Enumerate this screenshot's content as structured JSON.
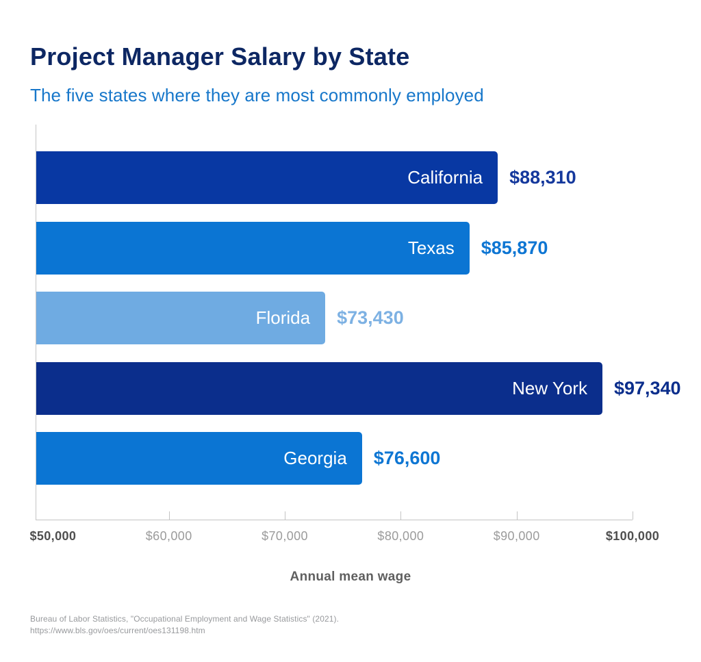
{
  "header": {
    "title": "Project Manager Salary by State",
    "subtitle": "The five states where they are most commonly employed"
  },
  "chart_data": {
    "type": "bar",
    "orientation": "horizontal",
    "title": "Project Manager Salary by State",
    "subtitle": "The five states where they are most commonly employed",
    "categories": [
      "California",
      "Texas",
      "Florida",
      "New York",
      "Georgia"
    ],
    "values": [
      88310,
      85870,
      73430,
      97340,
      76600
    ],
    "value_labels": [
      "$88,310",
      "$85,870",
      "$73,430",
      "$97,340",
      "$76,600"
    ],
    "bar_colors": [
      "#0838a3",
      "#0b75d3",
      "#6fabe2",
      "#0b2e8c",
      "#0b75d3"
    ],
    "value_colors": [
      "#14389c",
      "#0e76d3",
      "#7db1e3",
      "#0b2e8c",
      "#0e76d3"
    ],
    "xlabel": "Annual mean wage",
    "ylabel": "",
    "xlim": [
      50000,
      100000
    ],
    "x_ticks": [
      {
        "value": 50000,
        "label": "$50,000",
        "emphasis": true
      },
      {
        "value": 60000,
        "label": "$60,000",
        "emphasis": false
      },
      {
        "value": 70000,
        "label": "$70,000",
        "emphasis": false
      },
      {
        "value": 80000,
        "label": "$80,000",
        "emphasis": false
      },
      {
        "value": 90000,
        "label": "$90,000",
        "emphasis": false
      },
      {
        "value": 100000,
        "label": "$100,000",
        "emphasis": true
      }
    ],
    "grid": false,
    "legend": false
  },
  "footer": {
    "source_line1": "Bureau of Labor Statistics, \"Occupational Employment and Wage Statistics\" (2021).",
    "source_line2": "https://www.bls.gov/oes/current/oes131198.htm"
  },
  "colors": {
    "title": "#0d2763",
    "subtitle": "#1777ca",
    "axis": "#c4c4c4",
    "tick_label": "#9b9b9b",
    "tick_label_emphasis": "#4f4f4f",
    "axis_title": "#5f5f5f",
    "source": "#97999c",
    "background": "#ffffff"
  }
}
